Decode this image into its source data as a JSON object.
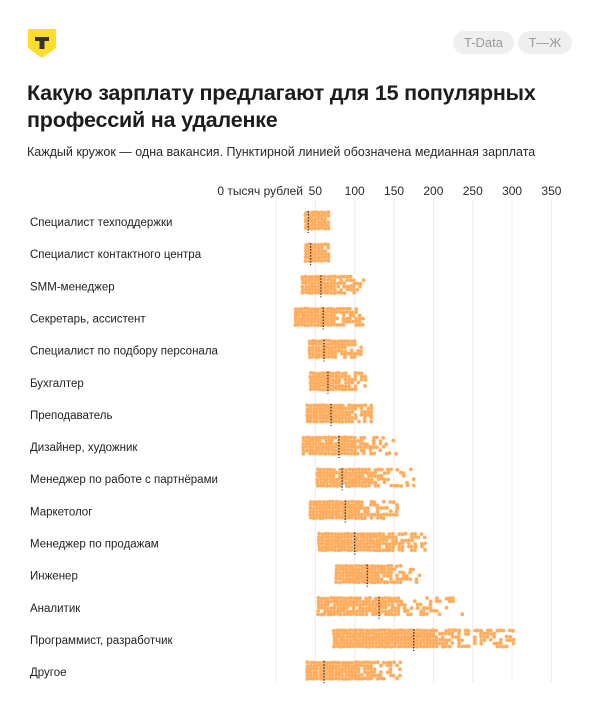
{
  "header": {
    "logo_letter": "Т",
    "tags": [
      "T-Data",
      "Т—Ж"
    ]
  },
  "title": "Какую зарплату предлагают для 15 популярных профессий на удаленке",
  "subtitle": "Каждый кружок — одна вакансия. Пунктирной линией обозначена медианная зарплата",
  "colors": {
    "dot": "#ffad5e",
    "median": "#333333",
    "grid": "#ececec",
    "logo": "#ffdd2d"
  },
  "chart_data": {
    "type": "scatter",
    "subtype": "beeswarm-strip",
    "title": "Какую зарплату предлагают для 15 популярных профессий на удаленке",
    "xlabel": "тысяч рублей",
    "x_first_tick_label": "0 тысяч рублей",
    "xlim": [
      0,
      350
    ],
    "x_ticks": [
      0,
      50,
      100,
      150,
      200,
      250,
      300,
      350
    ],
    "x_tick_labels": [
      "0 тысяч рублей",
      "50",
      "100",
      "150",
      "200",
      "250",
      "300",
      "350"
    ],
    "grid": true,
    "categories": [
      "Специалист техподдержки",
      "Специалист контактного центра",
      "SMM-менеджер",
      "Секретарь, ассистент",
      "Специалист по подбору персонала",
      "Бухгалтер",
      "Преподаватель",
      "Дизайнер, художник",
      "Менеджер по работе с партнёрами",
      "Маркетолог",
      "Менеджер по продажам",
      "Инженер",
      "Аналитик",
      "Программист, разработчик",
      "Другое"
    ],
    "series": [
      {
        "name": "Специалист техподдержки",
        "min": 36,
        "max": 72,
        "median": 41,
        "density": 1.0
      },
      {
        "name": "Специалист контактного центра",
        "min": 36,
        "max": 72,
        "median": 44,
        "density": 1.0
      },
      {
        "name": "SMM-менеджер",
        "min": 32,
        "max": 116,
        "median": 57,
        "density": 0.85
      },
      {
        "name": "Секретарь, ассистент",
        "min": 23,
        "max": 116,
        "median": 60,
        "density": 0.85
      },
      {
        "name": "Специалист по подбору персонала",
        "min": 41,
        "max": 111,
        "median": 61,
        "density": 0.9
      },
      {
        "name": "Бухгалтер",
        "min": 42,
        "max": 119,
        "median": 66,
        "density": 0.85
      },
      {
        "name": "Преподаватель",
        "min": 38,
        "max": 126,
        "median": 70,
        "density": 0.9
      },
      {
        "name": "Дизайнер, художник",
        "min": 33,
        "max": 155,
        "median": 80,
        "density": 0.7
      },
      {
        "name": "Менеджер по работе с партнёрами",
        "min": 51,
        "max": 179,
        "median": 84,
        "density": 0.7
      },
      {
        "name": "Маркетолог",
        "min": 42,
        "max": 156,
        "median": 88,
        "density": 0.95
      },
      {
        "name": "Менеджер по продажам",
        "min": 53,
        "max": 192,
        "median": 100,
        "density": 0.95
      },
      {
        "name": "Инженер",
        "min": 75,
        "max": 186,
        "median": 116,
        "density": 0.75
      },
      {
        "name": "Аналитик",
        "min": 52,
        "max": 245,
        "median": 131,
        "density": 0.55
      },
      {
        "name": "Программист, разработчик",
        "min": 72,
        "max": 306,
        "median": 175,
        "density": 0.8
      },
      {
        "name": "Другое",
        "min": 38,
        "max": 161,
        "median": 61,
        "density": 0.85
      }
    ]
  }
}
